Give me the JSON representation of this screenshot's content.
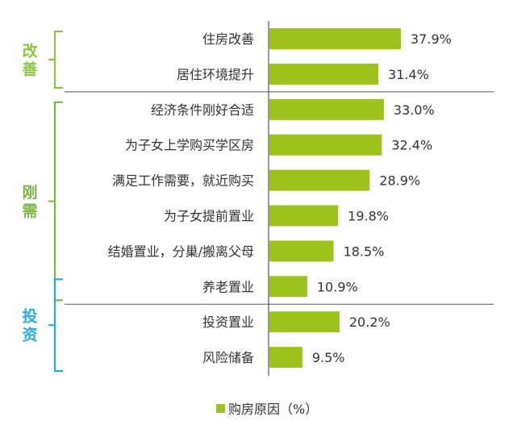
{
  "chart_data": {
    "type": "bar",
    "orientation": "horizontal",
    "categories": [
      "住房改善",
      "居住环境提升",
      "经济条件刚好合适",
      "为子女上学购买学区房",
      "满足工作需要，就近购买",
      "为子女提前置业",
      "结婚置业，分巢/搬离父母",
      "养老置业",
      "投资置业",
      "风险储备"
    ],
    "value_labels": [
      "37.9%",
      "31.4%",
      "33.0%",
      "32.4%",
      "28.9%",
      "19.8%",
      "18.5%",
      "10.9%",
      "20.2%",
      "9.5%"
    ],
    "series": [
      {
        "name": "购房原因（%）",
        "values": [
          37.9,
          31.4,
          33.0,
          32.4,
          28.9,
          19.8,
          18.5,
          10.9,
          20.2,
          9.5
        ]
      }
    ],
    "groups": [
      {
        "label": "改善",
        "start": 0,
        "end": 1,
        "color": "#8DC63F"
      },
      {
        "label": "刚需",
        "start": 2,
        "end": 7,
        "color": "#7AB648"
      },
      {
        "label": "投资",
        "start": 7,
        "end": 9,
        "color": "#29ABE2"
      }
    ],
    "legend": {
      "position": "bottom-center",
      "label": "购房原因（%）"
    },
    "colors": {
      "bar": "#9BC31C",
      "axis": "#333333",
      "separator": "#555555"
    },
    "grid": false
  }
}
